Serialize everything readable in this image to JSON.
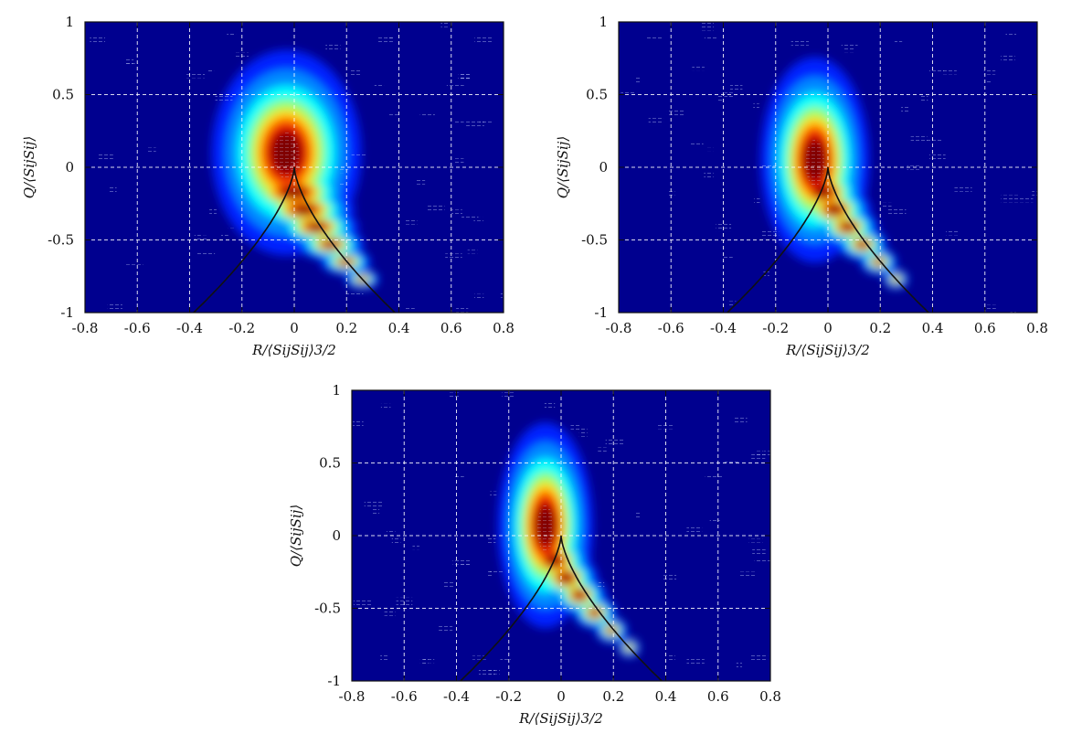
{
  "chart_data": [
    {
      "type": "heatmap",
      "title": "",
      "xlabel": "R/⟨SijSij⟩3/2",
      "ylabel": "Q/⟨SijSij⟩",
      "xlim": [
        -0.8,
        0.8
      ],
      "ylim": [
        -1,
        1
      ],
      "xticks": [
        "-0.8",
        "-0.6",
        "-0.4",
        "-0.2",
        "0",
        "0.2",
        "0.4",
        "0.6",
        "0.8"
      ],
      "yticks": [
        "-1",
        "-0.5",
        "0",
        "0.5",
        "1"
      ],
      "grid": true,
      "colormap": "jet",
      "density_peak": {
        "r": -0.03,
        "q": 0.05
      },
      "density_spread": {
        "r": 0.11,
        "q": 0.32
      },
      "density_tilt": -0.22,
      "vieillefosse_curve": "27/4 R^2 + Q^3 = 0"
    },
    {
      "type": "heatmap",
      "title": "",
      "xlabel": "R/⟨SijSij⟩3/2",
      "ylabel": "Q/⟨SijSij⟩",
      "xlim": [
        -0.8,
        0.8
      ],
      "ylim": [
        -1,
        1
      ],
      "xticks": [
        "-0.8",
        "-0.6",
        "-0.4",
        "-0.2",
        "0",
        "0.2",
        "0.4",
        "0.6",
        "0.8"
      ],
      "yticks": [
        "-1",
        "-0.5",
        "0",
        "0.5",
        "1"
      ],
      "grid": true,
      "colormap": "jet",
      "density_peak": {
        "r": -0.05,
        "q": 0.0
      },
      "density_spread": {
        "r": 0.08,
        "q": 0.32
      },
      "density_tilt": -0.2,
      "vieillefosse_curve": "27/4 R^2 + Q^3 = 0"
    },
    {
      "type": "heatmap",
      "title": "",
      "xlabel": "R/⟨SijSij⟩3/2",
      "ylabel": "Q/⟨SijSij⟩",
      "xlim": [
        -0.8,
        0.8
      ],
      "ylim": [
        -1,
        1
      ],
      "xticks": [
        "-0.8",
        "-0.6",
        "-0.4",
        "-0.2",
        "0",
        "0.2",
        "0.4",
        "0.6",
        "0.8"
      ],
      "yticks": [
        "-1",
        "-0.5",
        "0",
        "0.5",
        "1"
      ],
      "grid": true,
      "colormap": "jet",
      "density_peak": {
        "r": -0.06,
        "q": 0.02
      },
      "density_spread": {
        "r": 0.07,
        "q": 0.32
      },
      "density_tilt": -0.2,
      "vieillefosse_curve": "27/4 R^2 + Q^3 = 0"
    }
  ]
}
